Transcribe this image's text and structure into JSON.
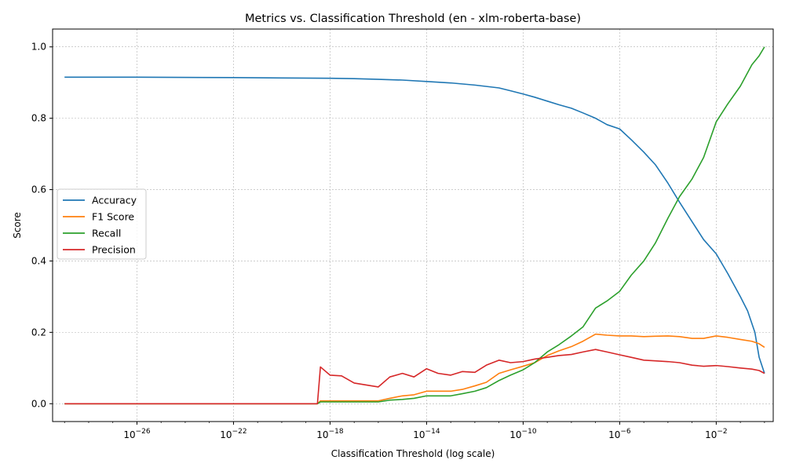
{
  "chart_data": {
    "type": "line",
    "title": "Metrics vs. Classification Threshold (en - xlm-roberta-base)",
    "xlabel": "Classification Threshold (log scale)",
    "ylabel": "Score",
    "xscale": "log",
    "xlim": [
      3.2e-30,
      2.3
    ],
    "ylim": [
      -0.05,
      1.05
    ],
    "x_ticks": [
      1e-26,
      1e-22,
      1e-18,
      1e-14,
      1e-10,
      1e-06,
      0.01
    ],
    "x_tick_labels": [
      {
        "base": "10",
        "exp": "−26"
      },
      {
        "base": "10",
        "exp": "−22"
      },
      {
        "base": "10",
        "exp": "−18"
      },
      {
        "base": "10",
        "exp": "−14"
      },
      {
        "base": "10",
        "exp": "−10"
      },
      {
        "base": "10",
        "exp": "−6"
      },
      {
        "base": "10",
        "exp": "−2"
      }
    ],
    "y_ticks": [
      0.0,
      0.2,
      0.4,
      0.6,
      0.8,
      1.0
    ],
    "y_tick_labels": [
      "0.0",
      "0.2",
      "0.4",
      "0.6",
      "0.8",
      "1.0"
    ],
    "grid": true,
    "legend_position": "center-left",
    "series": [
      {
        "name": "Accuracy",
        "color": "#1f77b4",
        "points": [
          [
            1e-29,
            0.915
          ],
          [
            1e-26,
            0.915
          ],
          [
            1e-22,
            0.914
          ],
          [
            1e-20,
            0.913
          ],
          [
            1e-18,
            0.912
          ],
          [
            1e-17,
            0.911
          ],
          [
            1e-16,
            0.909
          ],
          [
            1e-15,
            0.907
          ],
          [
            1e-14,
            0.903
          ],
          [
            1e-13,
            0.899
          ],
          [
            1e-12,
            0.893
          ],
          [
            1e-11,
            0.885
          ],
          [
            3e-11,
            0.877
          ],
          [
            1e-10,
            0.868
          ],
          [
            3e-10,
            0.859
          ],
          [
            1e-09,
            0.848
          ],
          [
            3e-09,
            0.838
          ],
          [
            1e-08,
            0.828
          ],
          [
            3e-08,
            0.815
          ],
          [
            1e-07,
            0.8
          ],
          [
            3e-07,
            0.782
          ],
          [
            1e-06,
            0.77
          ],
          [
            3e-06,
            0.74
          ],
          [
            1e-05,
            0.705
          ],
          [
            3e-05,
            0.67
          ],
          [
            0.0001,
            0.618
          ],
          [
            0.0003,
            0.565
          ],
          [
            0.001,
            0.51
          ],
          [
            0.003,
            0.46
          ],
          [
            0.01,
            0.42
          ],
          [
            0.03,
            0.365
          ],
          [
            0.1,
            0.3
          ],
          [
            0.2,
            0.26
          ],
          [
            0.4,
            0.2
          ],
          [
            0.6,
            0.13
          ],
          [
            1.0,
            0.085
          ]
        ]
      },
      {
        "name": "F1 Score",
        "color": "#ff7f0e",
        "points": [
          [
            1e-29,
            0.0
          ],
          [
            3e-19,
            0.0
          ],
          [
            4e-19,
            0.008
          ],
          [
            1e-16,
            0.008
          ],
          [
            3e-16,
            0.015
          ],
          [
            1e-15,
            0.022
          ],
          [
            3e-15,
            0.025
          ],
          [
            1e-14,
            0.035
          ],
          [
            1e-13,
            0.035
          ],
          [
            3e-13,
            0.04
          ],
          [
            1e-12,
            0.05
          ],
          [
            3e-12,
            0.06
          ],
          [
            1e-11,
            0.085
          ],
          [
            3e-11,
            0.095
          ],
          [
            1e-10,
            0.105
          ],
          [
            3e-10,
            0.115
          ],
          [
            1e-09,
            0.135
          ],
          [
            3e-09,
            0.148
          ],
          [
            1e-08,
            0.16
          ],
          [
            3e-08,
            0.175
          ],
          [
            1e-07,
            0.195
          ],
          [
            3e-07,
            0.192
          ],
          [
            1e-06,
            0.19
          ],
          [
            3e-06,
            0.19
          ],
          [
            1e-05,
            0.188
          ],
          [
            3e-05,
            0.189
          ],
          [
            0.0001,
            0.19
          ],
          [
            0.0003,
            0.188
          ],
          [
            0.001,
            0.183
          ],
          [
            0.003,
            0.183
          ],
          [
            0.01,
            0.19
          ],
          [
            0.03,
            0.186
          ],
          [
            0.1,
            0.18
          ],
          [
            0.3,
            0.175
          ],
          [
            0.6,
            0.168
          ],
          [
            1.0,
            0.158
          ]
        ]
      },
      {
        "name": "Recall",
        "color": "#2ca02c",
        "points": [
          [
            1e-29,
            0.0
          ],
          [
            3e-19,
            0.0
          ],
          [
            4e-19,
            0.005
          ],
          [
            1e-16,
            0.005
          ],
          [
            3e-16,
            0.01
          ],
          [
            1e-15,
            0.012
          ],
          [
            3e-15,
            0.015
          ],
          [
            1e-14,
            0.022
          ],
          [
            1e-13,
            0.022
          ],
          [
            3e-13,
            0.028
          ],
          [
            1e-12,
            0.035
          ],
          [
            3e-12,
            0.045
          ],
          [
            1e-11,
            0.065
          ],
          [
            3e-11,
            0.08
          ],
          [
            1e-10,
            0.095
          ],
          [
            3e-10,
            0.115
          ],
          [
            1e-09,
            0.145
          ],
          [
            3e-09,
            0.165
          ],
          [
            1e-08,
            0.19
          ],
          [
            3e-08,
            0.215
          ],
          [
            1e-07,
            0.268
          ],
          [
            3e-07,
            0.288
          ],
          [
            1e-06,
            0.315
          ],
          [
            3e-06,
            0.36
          ],
          [
            1e-05,
            0.4
          ],
          [
            3e-05,
            0.45
          ],
          [
            0.0001,
            0.52
          ],
          [
            0.0003,
            0.58
          ],
          [
            0.001,
            0.63
          ],
          [
            0.003,
            0.69
          ],
          [
            0.01,
            0.79
          ],
          [
            0.03,
            0.84
          ],
          [
            0.1,
            0.89
          ],
          [
            0.3,
            0.95
          ],
          [
            0.6,
            0.975
          ],
          [
            1.0,
            1.0
          ]
        ]
      },
      {
        "name": "Precision",
        "color": "#d62728",
        "points": [
          [
            1e-29,
            0.0
          ],
          [
            3e-19,
            0.0
          ],
          [
            4e-19,
            0.103
          ],
          [
            1e-18,
            0.08
          ],
          [
            3e-18,
            0.078
          ],
          [
            1e-17,
            0.058
          ],
          [
            1e-16,
            0.047
          ],
          [
            3e-16,
            0.075
          ],
          [
            1e-15,
            0.085
          ],
          [
            3e-15,
            0.075
          ],
          [
            1e-14,
            0.098
          ],
          [
            3e-14,
            0.085
          ],
          [
            1e-13,
            0.08
          ],
          [
            3e-13,
            0.09
          ],
          [
            1e-12,
            0.088
          ],
          [
            3e-12,
            0.108
          ],
          [
            1e-11,
            0.122
          ],
          [
            3e-11,
            0.115
          ],
          [
            1e-10,
            0.118
          ],
          [
            3e-10,
            0.125
          ],
          [
            1e-09,
            0.13
          ],
          [
            3e-09,
            0.135
          ],
          [
            1e-08,
            0.138
          ],
          [
            3e-08,
            0.145
          ],
          [
            1e-07,
            0.152
          ],
          [
            3e-07,
            0.145
          ],
          [
            1e-06,
            0.137
          ],
          [
            3e-06,
            0.13
          ],
          [
            1e-05,
            0.122
          ],
          [
            3e-05,
            0.12
          ],
          [
            0.0001,
            0.118
          ],
          [
            0.0003,
            0.115
          ],
          [
            0.001,
            0.108
          ],
          [
            0.003,
            0.105
          ],
          [
            0.01,
            0.107
          ],
          [
            0.03,
            0.104
          ],
          [
            0.1,
            0.1
          ],
          [
            0.3,
            0.097
          ],
          [
            0.6,
            0.093
          ],
          [
            1.0,
            0.085
          ]
        ]
      }
    ]
  }
}
